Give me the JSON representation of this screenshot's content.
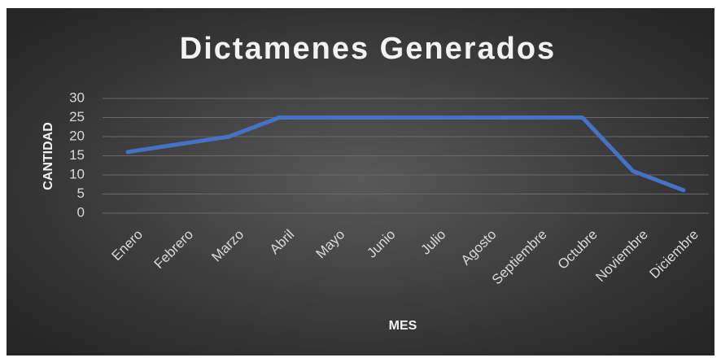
{
  "chart_data": {
    "type": "line",
    "title": "Dictamenes Generados",
    "x_label": "MES",
    "y_label": "CANTIDAD",
    "categories": [
      "Enero",
      "Febrero",
      "Marzo",
      "Abril",
      "Mayo",
      "Junio",
      "Julio",
      "Agosto",
      "Septiembre",
      "Octubre",
      "Noviembre",
      "Diciembre"
    ],
    "series": [
      {
        "name": "Dictamenes",
        "color": "#4472c4",
        "values": [
          16,
          18,
          20,
          25,
          25,
          25,
          25,
          25,
          25,
          25,
          11,
          6
        ]
      }
    ],
    "ylim": [
      0,
      30
    ],
    "yticks": [
      0,
      5,
      10,
      15,
      20,
      25,
      30
    ],
    "grid": true
  }
}
